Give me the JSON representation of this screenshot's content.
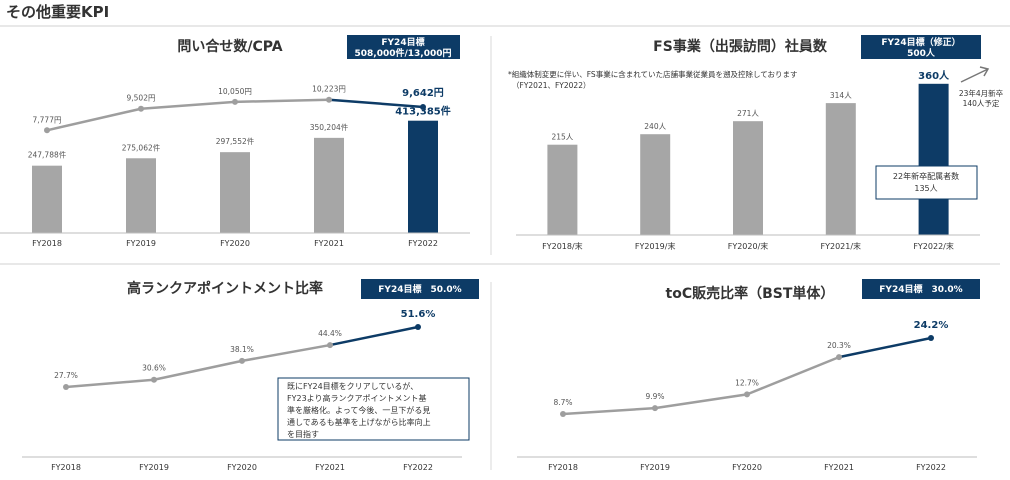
{
  "page": {
    "title": "その他重要KPI"
  },
  "colors": {
    "navy": "#0d3b66",
    "gray": "#a6a6a6",
    "line_gray": "#9e9e9e",
    "axis": "#bdbdbd"
  },
  "panels": {
    "inquiries": {
      "title": "問い合せ数/CPA",
      "target_lines": [
        "FY24目標",
        "508,000件/13,000円"
      ]
    },
    "fs": {
      "title": "FS事業（出張訪問）社員数",
      "target_lines": [
        "FY24目標（修正）",
        "500人"
      ],
      "note_lines": [
        "*組織体制変更に伴い、FS事業に含まれていた店舗事業従業員を遡及控除しております",
        "（FY2021、FY2022）"
      ],
      "arrow_note_lines": [
        "23年4月新卒",
        "140人予定"
      ],
      "box_lines": [
        "22年新卒配属者数",
        "135人"
      ]
    },
    "high_rank": {
      "title": "高ランクアポイントメント比率",
      "target_label": "FY24目標　50.0%",
      "box_lines": [
        "既にFY24目標をクリアしているが、",
        "FY23より高ランクアポイントメント基",
        "準を厳格化。よって今後、一旦下がる見",
        "通しであるも基準を上げながら比率向上",
        "を目指す"
      ]
    },
    "toc": {
      "title": "toC販売比率（BST単体）",
      "target_label": "FY24目標　30.0%"
    }
  },
  "chart_data": [
    {
      "type": "bar",
      "title": "問い合せ数/CPA",
      "categories": [
        "FY2018",
        "FY2019",
        "FY2020",
        "FY2021",
        "FY2022"
      ],
      "series": [
        {
          "name": "",
          "values": [
            247788,
            275062,
            297552,
            350204,
            413385
          ],
          "labels": [
            "247,788件",
            "275,062件",
            "297,552件",
            "350,204件",
            "413,385件"
          ]
        },
        {
          "name": "",
          "values": [
            7777,
            9502,
            10050,
            10223,
            9642
          ],
          "labels": [
            "7,777円",
            "9,502円",
            "10,050円",
            "10,223円",
            "9,642円"
          ]
        }
      ]
    },
    {
      "type": "bar",
      "title": "FS事業（出張訪問）社員数",
      "categories": [
        "FY2018/末",
        "FY2019/末",
        "FY2020/末",
        "FY2021/末",
        "FY2022/末"
      ],
      "values": [
        215,
        240,
        271,
        314,
        360
      ],
      "labels": [
        "215人",
        "240人",
        "271人",
        "314人",
        "360人"
      ]
    },
    {
      "type": "line",
      "title": "高ランクアポイントメント比率",
      "categories": [
        "FY2018",
        "FY2019",
        "FY2020",
        "FY2021",
        "FY2022"
      ],
      "values": [
        27.7,
        30.6,
        38.1,
        44.4,
        51.6
      ],
      "labels": [
        "27.7%",
        "30.6%",
        "38.1%",
        "44.4%",
        "51.6%"
      ]
    },
    {
      "type": "line",
      "title": "toC販売比率（BST単体）",
      "categories": [
        "FY2018",
        "FY2019",
        "FY2020",
        "FY2021",
        "FY2022"
      ],
      "values": [
        8.7,
        9.9,
        12.7,
        20.3,
        24.2
      ],
      "labels": [
        "8.7%",
        "9.9%",
        "12.7%",
        "20.3%",
        "24.2%"
      ]
    }
  ]
}
